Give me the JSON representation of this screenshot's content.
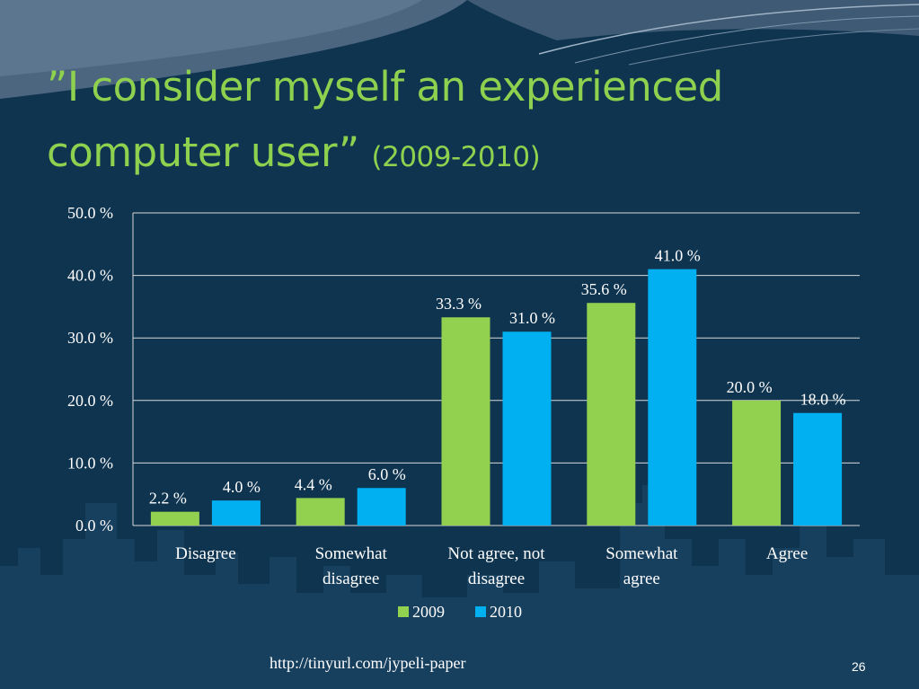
{
  "slide": {
    "title_main_line1": "”I consider myself an experienced",
    "title_main_line2": "computer user”",
    "title_years": "(2009-2010)",
    "url": "http://tinyurl.com/jypeli-paper",
    "page_number": "26",
    "colors": {
      "background": "#0f3450",
      "title": "#8ed14f",
      "text": "#ffffff"
    }
  },
  "chart_data": {
    "type": "bar",
    "categories": [
      [
        "Disagree"
      ],
      [
        "Somewhat",
        "disagree"
      ],
      [
        "Not agree, not",
        "disagree"
      ],
      [
        "Somewhat",
        "agree"
      ],
      [
        "Agree"
      ]
    ],
    "series": [
      {
        "name": "2009",
        "color": "#92d050",
        "values": [
          2.2,
          4.4,
          33.3,
          35.6,
          20.0
        ],
        "labels": [
          "2.2 %",
          "4.4 %",
          "33.3 %",
          "35.6 %",
          "20.0 %"
        ]
      },
      {
        "name": "2010",
        "color": "#00b0f0",
        "values": [
          4.0,
          6.0,
          31.0,
          41.0,
          18.0
        ],
        "labels": [
          "4.0 %",
          "6.0 %",
          "31.0 %",
          "41.0 %",
          "18.0 %"
        ]
      }
    ],
    "ylim": [
      0,
      50
    ],
    "yticks": [
      0,
      10,
      20,
      30,
      40,
      50
    ],
    "ytick_labels": [
      "0.0 %",
      "10.0 %",
      "20.0 %",
      "30.0 %",
      "40.0 %",
      "50.0 %"
    ],
    "grid": true,
    "legend_position": "bottom"
  }
}
